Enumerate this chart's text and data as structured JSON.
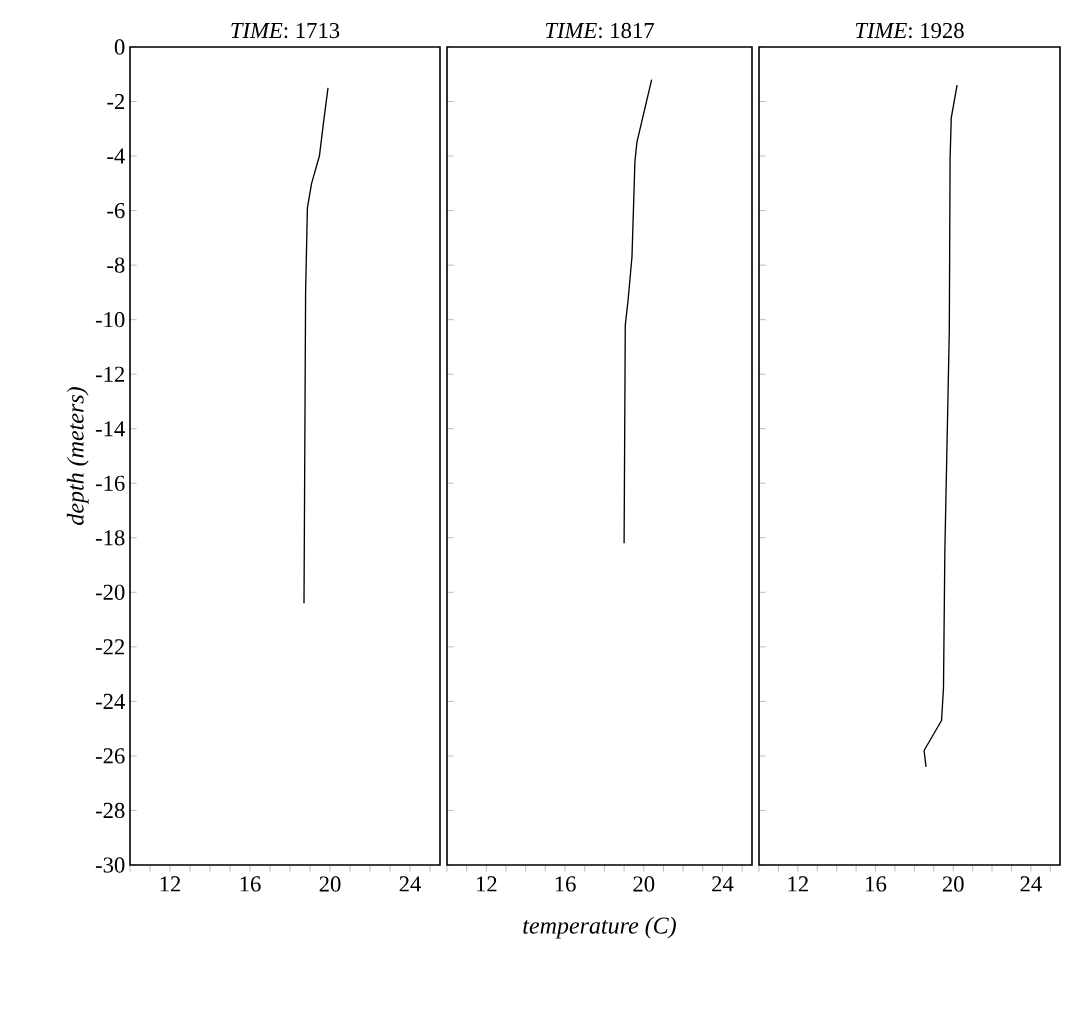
{
  "chart_data": [
    {
      "type": "line",
      "title": "*TIME*: 1713",
      "ylabel": "depth (meters)",
      "xlim": [
        10,
        25.5
      ],
      "ylim": [
        -30,
        0
      ],
      "xticks": [
        {
          "value": 10,
          "label": null
        },
        {
          "value": 11,
          "label": null
        },
        12,
        {
          "value": 13,
          "label": null
        },
        {
          "value": 14,
          "label": null
        },
        {
          "value": 15,
          "label": null
        },
        16,
        {
          "value": 17,
          "label": null
        },
        {
          "value": 18,
          "label": null
        },
        {
          "value": 19,
          "label": null
        },
        20,
        {
          "value": 21,
          "label": null
        },
        {
          "value": 22,
          "label": null
        },
        {
          "value": 23,
          "label": null
        },
        24,
        {
          "value": 25,
          "label": null
        }
      ],
      "yticks": [
        0,
        -2,
        -4,
        -6,
        -8,
        -10,
        -12,
        -14,
        -16,
        -18,
        -20,
        -22,
        -24,
        -26,
        -28,
        -30
      ],
      "marker": "none",
      "line_style": "solid",
      "series": [
        {
          "color": "#000000",
          "x": [
            19.9,
            19.67,
            19.47,
            19.08,
            18.87,
            18.78,
            18.7
          ],
          "values": [
            -1.5,
            -2.8,
            -4.0,
            -5.0,
            -5.9,
            -9.0,
            -20.4
          ]
        }
      ]
    },
    {
      "type": "line",
      "title": "*TIME*: 1817",
      "xlabel": "temperature (C)",
      "xlim": [
        10,
        25.5
      ],
      "ylim": [
        -30,
        0
      ],
      "tick_labels": "x",
      "xticks": [
        {
          "value": 10,
          "label": null
        },
        {
          "value": 11,
          "label": null
        },
        12,
        {
          "value": 13,
          "label": null
        },
        {
          "value": 14,
          "label": null
        },
        {
          "value": 15,
          "label": null
        },
        16,
        {
          "value": 17,
          "label": null
        },
        {
          "value": 18,
          "label": null
        },
        {
          "value": 19,
          "label": null
        },
        20,
        {
          "value": 21,
          "label": null
        },
        {
          "value": 22,
          "label": null
        },
        {
          "value": 23,
          "label": null
        },
        24,
        {
          "value": 25,
          "label": null
        }
      ],
      "yticks": [
        {
          "value": 0,
          "label": null
        },
        {
          "value": -2,
          "label": null
        },
        {
          "value": -4,
          "label": null
        },
        {
          "value": -6,
          "label": null
        },
        {
          "value": -8,
          "label": null
        },
        {
          "value": -10,
          "label": null
        },
        {
          "value": -12,
          "label": null
        },
        {
          "value": -14,
          "label": null
        },
        {
          "value": -16,
          "label": null
        },
        {
          "value": -18,
          "label": null
        },
        {
          "value": -20,
          "label": null
        },
        {
          "value": -22,
          "label": null
        },
        {
          "value": -24,
          "label": null
        },
        {
          "value": -26,
          "label": null
        },
        {
          "value": -28,
          "label": null
        },
        {
          "value": -30,
          "label": null
        }
      ],
      "marker": "none",
      "line_style": "solid",
      "series": [
        {
          "color": "#000000",
          "x": [
            20.4,
            19.65,
            19.55,
            19.4,
            19.2,
            19.06,
            19.0
          ],
          "values": [
            -1.2,
            -3.5,
            -4.2,
            -7.7,
            -9.3,
            -10.2,
            -18.2
          ]
        }
      ]
    },
    {
      "type": "line",
      "title": "*TIME*: 1928",
      "xlim": [
        10,
        25.5
      ],
      "ylim": [
        -30,
        0
      ],
      "tick_labels": "x",
      "xticks": [
        {
          "value": 10,
          "label": null
        },
        {
          "value": 11,
          "label": null
        },
        12,
        {
          "value": 13,
          "label": null
        },
        {
          "value": 14,
          "label": null
        },
        {
          "value": 15,
          "label": null
        },
        16,
        {
          "value": 17,
          "label": null
        },
        {
          "value": 18,
          "label": null
        },
        {
          "value": 19,
          "label": null
        },
        20,
        {
          "value": 21,
          "label": null
        },
        {
          "value": 22,
          "label": null
        },
        {
          "value": 23,
          "label": null
        },
        24,
        {
          "value": 25,
          "label": null
        }
      ],
      "yticks": [
        {
          "value": 0,
          "label": null
        },
        {
          "value": -2,
          "label": null
        },
        {
          "value": -4,
          "label": null
        },
        {
          "value": -6,
          "label": null
        },
        {
          "value": -8,
          "label": null
        },
        {
          "value": -10,
          "label": null
        },
        {
          "value": -12,
          "label": null
        },
        {
          "value": -14,
          "label": null
        },
        {
          "value": -16,
          "label": null
        },
        {
          "value": -18,
          "label": null
        },
        {
          "value": -20,
          "label": null
        },
        {
          "value": -22,
          "label": null
        },
        {
          "value": -24,
          "label": null
        },
        {
          "value": -26,
          "label": null
        },
        {
          "value": -28,
          "label": null
        },
        {
          "value": -30,
          "label": null
        }
      ],
      "marker": "none",
      "line_style": "solid",
      "series": [
        {
          "color": "#000000",
          "x": [
            20.2,
            19.9,
            19.84,
            19.8,
            19.57,
            19.5,
            19.4,
            18.5,
            18.6
          ],
          "values": [
            -1.4,
            -2.6,
            -4.1,
            -10.4,
            -18.5,
            -23.5,
            -24.7,
            -25.8,
            -26.4
          ]
        }
      ]
    }
  ]
}
